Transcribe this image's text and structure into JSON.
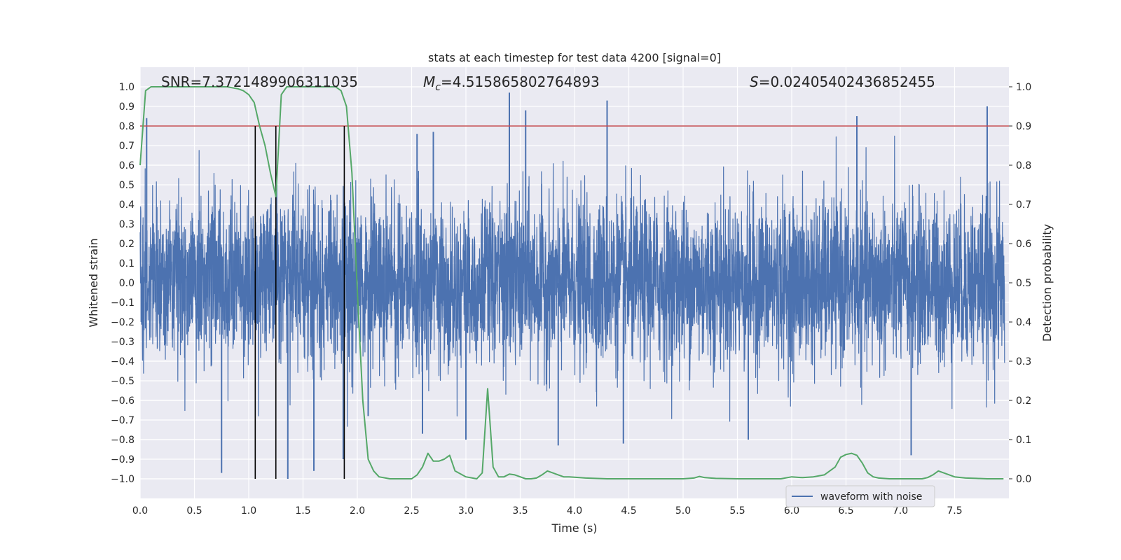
{
  "chart_data": {
    "type": "line",
    "title": "stats at each timestep for test data 4200 [signal=0]",
    "xlabel": "Time (s)",
    "ylabel": "Whitened strain",
    "y2label": "Detection probability",
    "xlim": [
      0.0,
      8.0
    ],
    "ylim": [
      -1.1,
      1.1
    ],
    "y2lim": [
      -0.05,
      1.05
    ],
    "xticks": [
      "0.0",
      "0.5",
      "1.0",
      "1.5",
      "2.0",
      "2.5",
      "3.0",
      "3.5",
      "4.0",
      "4.5",
      "5.0",
      "5.5",
      "6.0",
      "6.5",
      "7.0",
      "7.5"
    ],
    "yticks": [
      "1.0",
      "0.9",
      "0.8",
      "0.7",
      "0.6",
      "0.5",
      "0.4",
      "0.3",
      "0.2",
      "0.1",
      "0.0",
      "-0.1",
      "-0.2",
      "-0.3",
      "-0.4",
      "-0.5",
      "-0.6",
      "-0.7",
      "-0.8",
      "-0.9",
      "-1.0"
    ],
    "y2ticks": [
      "1.0",
      "0.9",
      "0.8",
      "0.7",
      "0.6",
      "0.5",
      "0.4",
      "0.3",
      "0.2",
      "0.1",
      "0.0"
    ],
    "annotations": {
      "snr": "SNR=7.3721489906311035",
      "mc_symbol": "M",
      "mc_sub": "c",
      "mc_value": "=4.515865802764893",
      "s_symbol": "S",
      "s_value": "=0.02405402436852455"
    },
    "grid": true,
    "legend_position": "lower-right",
    "series": [
      {
        "name": "waveform with noise",
        "axis": "left",
        "color": "#4c72b0",
        "style": "dense-noise",
        "typical_amplitude": 0.38,
        "max_amplitude": 0.97,
        "spikes": [
          {
            "x": 0.06,
            "y": 0.84
          },
          {
            "x": 0.75,
            "y": -0.97
          },
          {
            "x": 1.36,
            "y": -1.0
          },
          {
            "x": 1.6,
            "y": -0.96
          },
          {
            "x": 1.87,
            "y": -0.9
          },
          {
            "x": 2.1,
            "y": -0.68
          },
          {
            "x": 2.55,
            "y": 0.76
          },
          {
            "x": 2.6,
            "y": -0.77
          },
          {
            "x": 2.7,
            "y": 0.77
          },
          {
            "x": 3.0,
            "y": -0.8
          },
          {
            "x": 3.4,
            "y": 0.97
          },
          {
            "x": 3.55,
            "y": 0.88
          },
          {
            "x": 3.85,
            "y": -0.83
          },
          {
            "x": 4.3,
            "y": 0.93
          },
          {
            "x": 4.45,
            "y": -0.82
          },
          {
            "x": 5.6,
            "y": -0.8
          },
          {
            "x": 6.6,
            "y": 0.85
          },
          {
            "x": 7.1,
            "y": -0.88
          },
          {
            "x": 7.8,
            "y": 0.9
          }
        ]
      },
      {
        "name": "",
        "axis": "right",
        "color": "#55a868",
        "x": [
          0.0,
          0.05,
          0.1,
          0.2,
          0.4,
          0.6,
          0.8,
          0.9,
          0.95,
          1.0,
          1.05,
          1.1,
          1.15,
          1.2,
          1.25,
          1.3,
          1.35,
          1.4,
          1.5,
          1.6,
          1.7,
          1.8,
          1.85,
          1.9,
          1.95,
          2.0,
          2.05,
          2.1,
          2.15,
          2.2,
          2.3,
          2.4,
          2.5,
          2.55,
          2.6,
          2.65,
          2.7,
          2.75,
          2.8,
          2.85,
          2.9,
          3.0,
          3.1,
          3.15,
          3.2,
          3.25,
          3.3,
          3.35,
          3.4,
          3.45,
          3.5,
          3.55,
          3.6,
          3.65,
          3.7,
          3.75,
          3.8,
          3.85,
          3.9,
          3.95,
          4.0,
          4.1,
          4.3,
          4.5,
          5.0,
          5.1,
          5.15,
          5.2,
          5.3,
          5.5,
          5.9,
          6.0,
          6.1,
          6.2,
          6.3,
          6.4,
          6.45,
          6.5,
          6.55,
          6.6,
          6.65,
          6.7,
          6.75,
          6.8,
          6.9,
          7.0,
          7.1,
          7.2,
          7.25,
          7.3,
          7.35,
          7.4,
          7.5,
          7.6,
          7.7,
          7.8,
          7.95
        ],
        "values": [
          0.8,
          0.99,
          1.0,
          1.0,
          1.0,
          1.0,
          1.0,
          0.995,
          0.99,
          0.98,
          0.96,
          0.9,
          0.85,
          0.78,
          0.72,
          0.98,
          1.0,
          1.0,
          1.0,
          1.0,
          1.0,
          1.0,
          0.99,
          0.95,
          0.78,
          0.48,
          0.2,
          0.05,
          0.02,
          0.005,
          0.0,
          0.0,
          0.0,
          0.01,
          0.03,
          0.065,
          0.045,
          0.045,
          0.05,
          0.06,
          0.02,
          0.005,
          0.0,
          0.015,
          0.23,
          0.03,
          0.005,
          0.005,
          0.012,
          0.01,
          0.005,
          0.0,
          0.0,
          0.002,
          0.01,
          0.02,
          0.015,
          0.01,
          0.005,
          0.005,
          0.004,
          0.002,
          0.0,
          0.0,
          0.0,
          0.002,
          0.006,
          0.003,
          0.001,
          0.0,
          0.0,
          0.005,
          0.003,
          0.005,
          0.01,
          0.03,
          0.055,
          0.062,
          0.065,
          0.06,
          0.04,
          0.015,
          0.005,
          0.002,
          0.0,
          0.0,
          0.0,
          0.0,
          0.003,
          0.01,
          0.02,
          0.015,
          0.005,
          0.002,
          0.001,
          0.0,
          0.0
        ]
      },
      {
        "name": "",
        "type": "hline",
        "axis": "right",
        "color": "#c44e52",
        "value": 0.9
      },
      {
        "name": "",
        "type": "vlines",
        "color": "#000000",
        "x": [
          1.06,
          1.25,
          1.88
        ],
        "ymax": 0.9
      }
    ]
  }
}
